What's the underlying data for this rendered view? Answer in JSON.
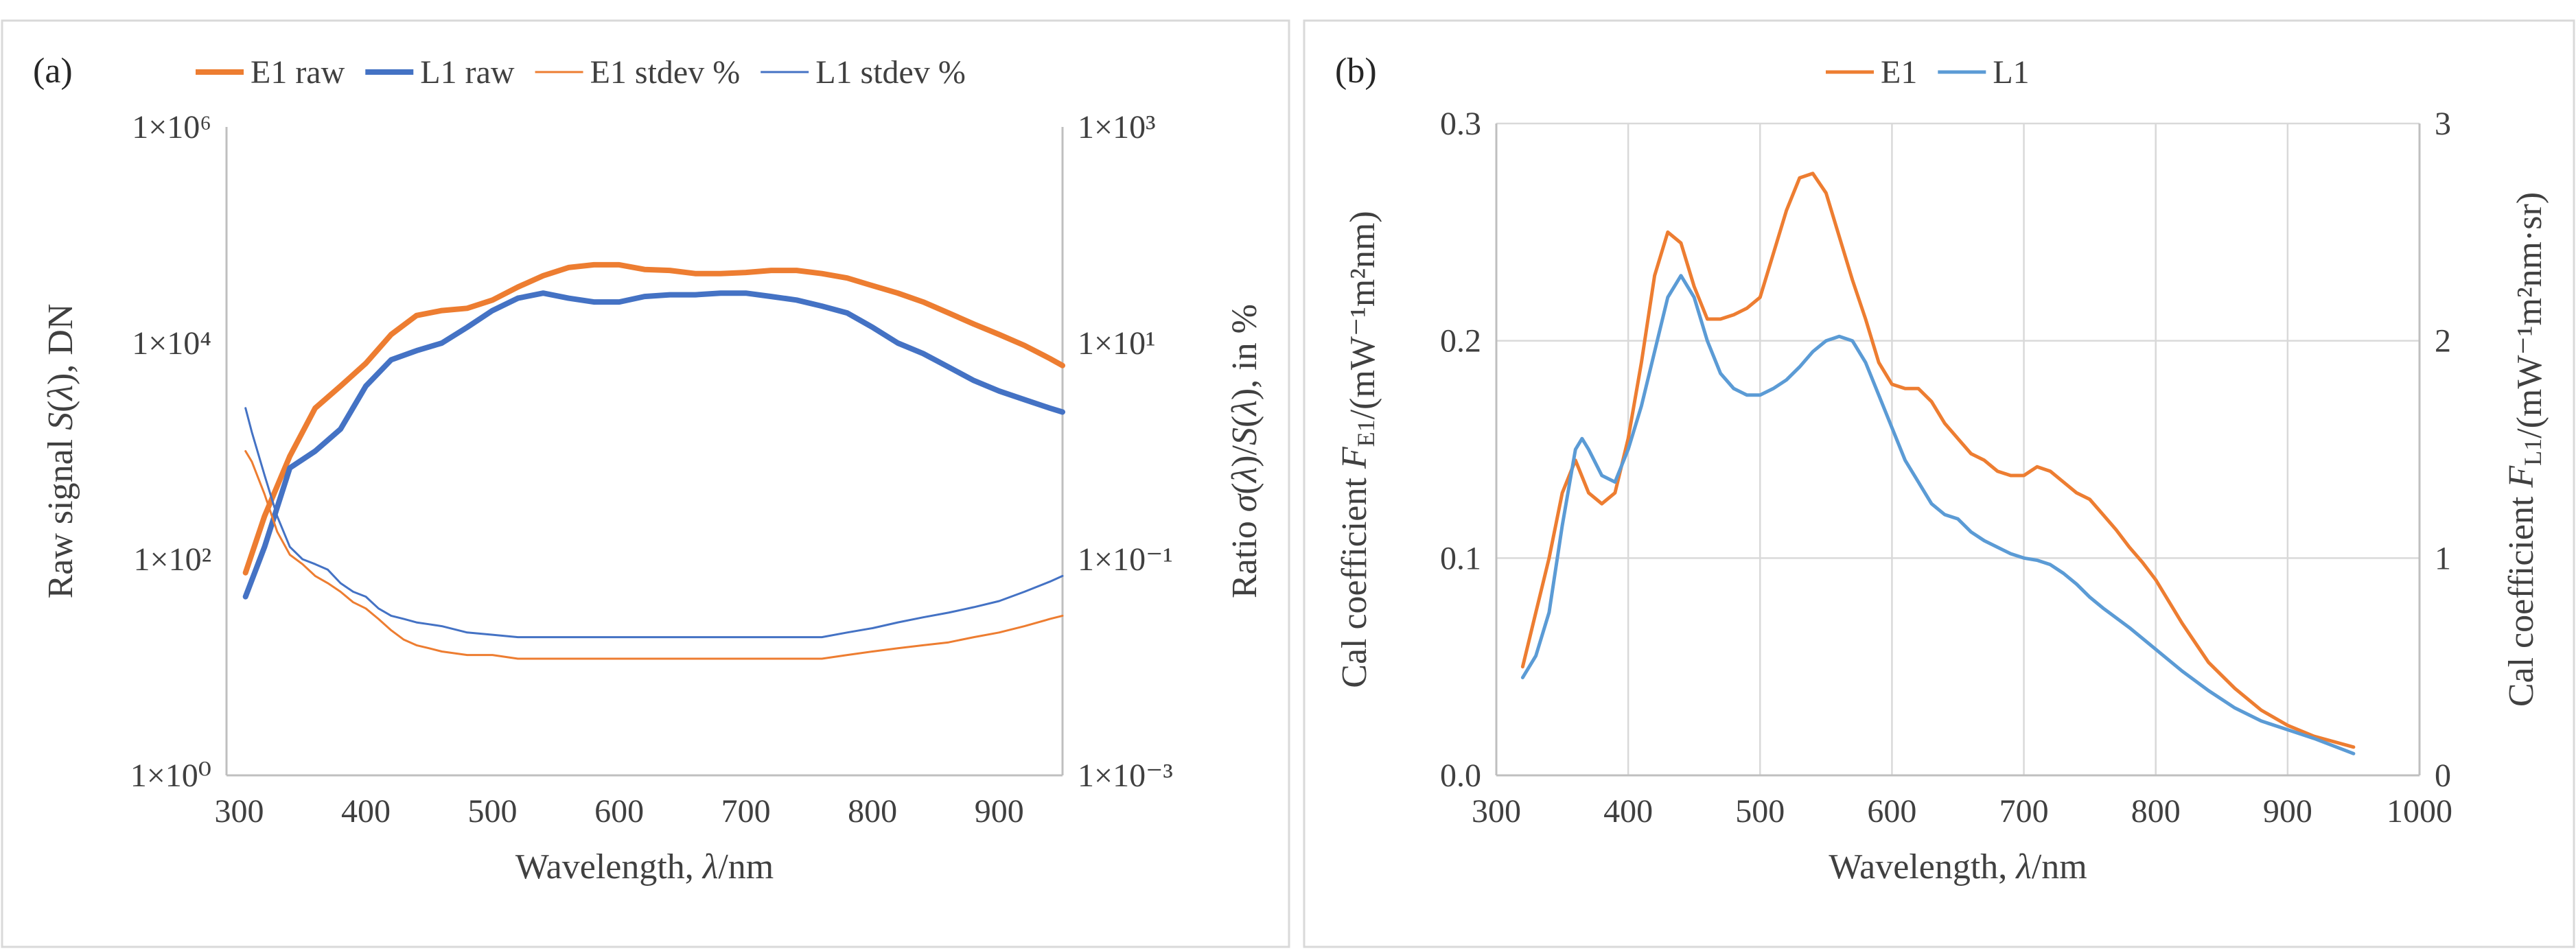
{
  "figure": {
    "colors": {
      "E1": "#ED7D31",
      "L1": "#4472C4",
      "L1b": "#5B9BD5"
    }
  },
  "chart_data": [
    {
      "type": "line",
      "panel_label": "(a)",
      "title": "",
      "xlabel_prefix": "Wavelength, ",
      "xlabel_var": "λ",
      "xlabel_suffix": "/nm",
      "ylabel_left": "Raw signal S(λ), DN",
      "ylabel_right": "Ratio σ(λ)/S(λ), in %",
      "xlim": [
        290,
        950
      ],
      "xticks": [
        "300",
        "400",
        "500",
        "600",
        "700",
        "800",
        "900"
      ],
      "yscale": "log",
      "ylim_left_log10": [
        0,
        6
      ],
      "ylim_right_log10": [
        -3,
        3
      ],
      "yticks_left": [
        "1×10⁰",
        "1×10²",
        "1×10⁴",
        "1×10⁶"
      ],
      "yticks_right": [
        "1×10⁻³",
        "1×10⁻¹",
        "1×10¹",
        "1×10³"
      ],
      "legend": [
        "E1 raw",
        "L1 raw",
        "E1 stdev %",
        "L1 stdev %"
      ],
      "series": [
        {
          "name": "E1 raw",
          "axis": "left",
          "color": "#ED7D31",
          "width": 8,
          "x": [
            305,
            320,
            340,
            360,
            380,
            400,
            420,
            440,
            460,
            480,
            500,
            520,
            540,
            560,
            580,
            600,
            620,
            640,
            660,
            680,
            700,
            720,
            740,
            760,
            780,
            800,
            820,
            840,
            860,
            880,
            900,
            920,
            940,
            950
          ],
          "values": [
            75,
            250,
            900,
            2500,
            4000,
            6500,
            12000,
            18000,
            20000,
            21000,
            25000,
            33000,
            42000,
            50000,
            53000,
            53000,
            48000,
            47000,
            44000,
            44000,
            45000,
            47000,
            47000,
            44000,
            40000,
            34000,
            29000,
            24000,
            19000,
            15000,
            12000,
            9500,
            7200,
            6200
          ]
        },
        {
          "name": "L1 raw",
          "axis": "left",
          "color": "#4472C4",
          "width": 8,
          "x": [
            305,
            320,
            340,
            360,
            380,
            400,
            420,
            440,
            460,
            480,
            500,
            520,
            540,
            560,
            580,
            600,
            620,
            640,
            660,
            680,
            700,
            720,
            740,
            760,
            780,
            800,
            820,
            840,
            860,
            880,
            900,
            920,
            940,
            950
          ],
          "values": [
            45,
            130,
            700,
            1000,
            1600,
            4000,
            7000,
            8500,
            10000,
            14000,
            20000,
            26000,
            29000,
            26000,
            24000,
            24000,
            27000,
            28000,
            28000,
            29000,
            29000,
            27000,
            25000,
            22000,
            19000,
            14000,
            10000,
            8000,
            6000,
            4500,
            3600,
            3000,
            2500,
            2300
          ]
        },
        {
          "name": "E1 stdev %",
          "axis": "right",
          "color": "#ED7D31",
          "width": 3,
          "x": [
            305,
            310,
            320,
            330,
            340,
            350,
            360,
            370,
            380,
            390,
            400,
            410,
            420,
            430,
            440,
            450,
            460,
            480,
            500,
            520,
            540,
            560,
            580,
            600,
            620,
            640,
            660,
            680,
            700,
            720,
            740,
            760,
            780,
            800,
            820,
            840,
            860,
            880,
            900,
            920,
            940,
            950
          ],
          "values": [
            1.0,
            0.8,
            0.4,
            0.18,
            0.11,
            0.09,
            0.07,
            0.06,
            0.05,
            0.04,
            0.035,
            0.028,
            0.022,
            0.018,
            0.016,
            0.015,
            0.014,
            0.013,
            0.013,
            0.012,
            0.012,
            0.012,
            0.012,
            0.012,
            0.012,
            0.012,
            0.012,
            0.012,
            0.012,
            0.012,
            0.012,
            0.012,
            0.013,
            0.014,
            0.015,
            0.016,
            0.017,
            0.019,
            0.021,
            0.024,
            0.028,
            0.03
          ]
        },
        {
          "name": "L1 stdev %",
          "axis": "right",
          "color": "#4472C4",
          "width": 3,
          "x": [
            305,
            310,
            320,
            330,
            340,
            350,
            360,
            370,
            380,
            390,
            400,
            410,
            420,
            430,
            440,
            450,
            460,
            480,
            500,
            520,
            540,
            560,
            580,
            600,
            620,
            640,
            660,
            680,
            700,
            720,
            740,
            760,
            780,
            800,
            820,
            840,
            860,
            880,
            900,
            920,
            940,
            950
          ],
          "values": [
            2.5,
            1.5,
            0.6,
            0.25,
            0.13,
            0.1,
            0.09,
            0.08,
            0.06,
            0.05,
            0.045,
            0.035,
            0.03,
            0.028,
            0.026,
            0.025,
            0.024,
            0.021,
            0.02,
            0.019,
            0.019,
            0.019,
            0.019,
            0.019,
            0.019,
            0.019,
            0.019,
            0.019,
            0.019,
            0.019,
            0.019,
            0.019,
            0.021,
            0.023,
            0.026,
            0.029,
            0.032,
            0.036,
            0.041,
            0.05,
            0.062,
            0.07
          ]
        }
      ]
    },
    {
      "type": "line",
      "panel_label": "(b)",
      "title": "",
      "xlabel_prefix": "Wavelength, ",
      "xlabel_var": "λ",
      "xlabel_suffix": "/nm",
      "ylabel_left": "Cal coefficient F_E1/(mW⁻¹m²nm)",
      "ylabel_right": "Cal coefficient F_L1/(mW⁻¹m²nm·sr)",
      "xlim": [
        300,
        1000
      ],
      "xticks": [
        "300",
        "400",
        "500",
        "600",
        "700",
        "800",
        "900",
        "1000"
      ],
      "ylim_left": [
        0,
        0.3
      ],
      "ylim_right": [
        0,
        3
      ],
      "yticks_left": [
        "0.0",
        "0.1",
        "0.2",
        "0.3"
      ],
      "yticks_right": [
        "0",
        "1",
        "2",
        "3"
      ],
      "legend": [
        "E1",
        "L1"
      ],
      "series": [
        {
          "name": "E1",
          "axis": "left",
          "color": "#ED7D31",
          "width": 5,
          "x": [
            320,
            330,
            340,
            350,
            360,
            370,
            380,
            390,
            400,
            410,
            420,
            430,
            440,
            450,
            460,
            470,
            480,
            490,
            500,
            510,
            520,
            530,
            540,
            550,
            560,
            570,
            580,
            590,
            600,
            610,
            620,
            630,
            640,
            650,
            660,
            670,
            680,
            690,
            700,
            710,
            720,
            730,
            740,
            750,
            760,
            770,
            780,
            790,
            800,
            820,
            840,
            860,
            880,
            900,
            920,
            950
          ],
          "values": [
            0.05,
            0.075,
            0.1,
            0.13,
            0.145,
            0.13,
            0.125,
            0.13,
            0.155,
            0.19,
            0.23,
            0.25,
            0.245,
            0.225,
            0.21,
            0.21,
            0.212,
            0.215,
            0.22,
            0.24,
            0.26,
            0.275,
            0.277,
            0.268,
            0.248,
            0.228,
            0.21,
            0.19,
            0.18,
            0.178,
            0.178,
            0.172,
            0.162,
            0.155,
            0.148,
            0.145,
            0.14,
            0.138,
            0.138,
            0.142,
            0.14,
            0.135,
            0.13,
            0.127,
            0.12,
            0.113,
            0.105,
            0.098,
            0.09,
            0.07,
            0.052,
            0.04,
            0.03,
            0.023,
            0.018,
            0.013
          ]
        },
        {
          "name": "L1",
          "axis": "right",
          "color": "#5B9BD5",
          "width": 5,
          "x": [
            320,
            330,
            340,
            350,
            360,
            365,
            370,
            380,
            390,
            400,
            410,
            420,
            430,
            440,
            450,
            460,
            470,
            480,
            490,
            500,
            510,
            520,
            530,
            540,
            550,
            560,
            570,
            580,
            590,
            600,
            610,
            620,
            630,
            640,
            650,
            660,
            670,
            680,
            690,
            700,
            710,
            720,
            730,
            740,
            750,
            760,
            780,
            800,
            820,
            840,
            860,
            880,
            900,
            920,
            950
          ],
          "values": [
            0.45,
            0.55,
            0.75,
            1.15,
            1.5,
            1.55,
            1.5,
            1.38,
            1.35,
            1.5,
            1.7,
            1.95,
            2.2,
            2.3,
            2.2,
            2.0,
            1.85,
            1.78,
            1.75,
            1.75,
            1.78,
            1.82,
            1.88,
            1.95,
            2.0,
            2.02,
            2.0,
            1.9,
            1.75,
            1.6,
            1.45,
            1.35,
            1.25,
            1.2,
            1.18,
            1.12,
            1.08,
            1.05,
            1.02,
            1.0,
            0.99,
            0.97,
            0.93,
            0.88,
            0.82,
            0.77,
            0.68,
            0.58,
            0.48,
            0.39,
            0.31,
            0.25,
            0.21,
            0.17,
            0.1
          ]
        }
      ]
    }
  ]
}
